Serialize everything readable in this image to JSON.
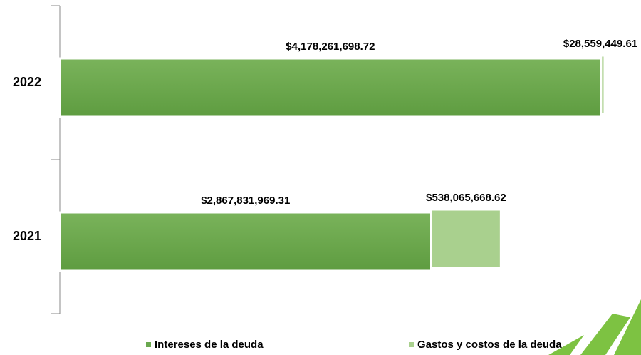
{
  "chart_data": {
    "type": "stacked_barh",
    "categories": [
      "2022",
      "2021"
    ],
    "series": [
      {
        "name": "Intereses de la deuda",
        "color": "#6aa84f",
        "values": [
          4178261698.72,
          2867831969.31
        ],
        "value_labels": [
          "$4,178,261,698.72",
          "$2,867,831,969.31"
        ]
      },
      {
        "name": "Gastos y costos de la deuda",
        "color": "#a9d08e",
        "values": [
          28559449.61,
          538065668.62
        ],
        "value_labels": [
          "$28,559,449.61",
          "$538,065,668.62"
        ]
      }
    ],
    "legend": "bottom"
  }
}
